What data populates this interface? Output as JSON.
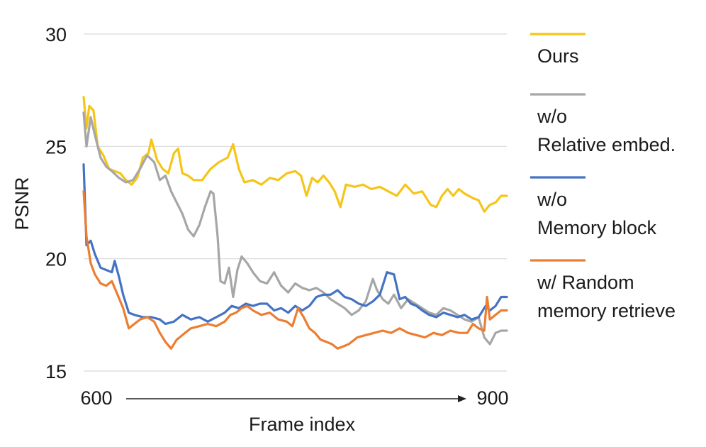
{
  "chart_data": {
    "type": "line",
    "title": "",
    "xlabel": "Frame index",
    "ylabel": "PSNR",
    "xlim": [
      600,
      900
    ],
    "ylim": [
      15,
      30
    ],
    "yticks": [
      15,
      20,
      25,
      30
    ],
    "x_tick_labels": [
      "600",
      "900"
    ],
    "grid": true,
    "legend_position": "right",
    "colors": {
      "ours": "#f5c518",
      "relative": "#a6a6a6",
      "memory": "#4472c4",
      "random": "#ed7d31"
    },
    "series": [
      {
        "name": "Ours",
        "color": "#f5c518",
        "points": [
          [
            600,
            27.2
          ],
          [
            602,
            25.8
          ],
          [
            604,
            26.8
          ],
          [
            607,
            26.6
          ],
          [
            610,
            25.0
          ],
          [
            614,
            24.6
          ],
          [
            618,
            24.0
          ],
          [
            622,
            23.9
          ],
          [
            626,
            23.8
          ],
          [
            630,
            23.5
          ],
          [
            634,
            23.3
          ],
          [
            638,
            23.6
          ],
          [
            642,
            24.5
          ],
          [
            646,
            24.7
          ],
          [
            648,
            25.3
          ],
          [
            652,
            24.4
          ],
          [
            656,
            24.0
          ],
          [
            660,
            23.8
          ],
          [
            664,
            24.7
          ],
          [
            667,
            24.9
          ],
          [
            670,
            23.8
          ],
          [
            674,
            23.7
          ],
          [
            678,
            23.5
          ],
          [
            684,
            23.5
          ],
          [
            690,
            24.0
          ],
          [
            696,
            24.3
          ],
          [
            702,
            24.5
          ],
          [
            706,
            25.1
          ],
          [
            710,
            24.0
          ],
          [
            714,
            23.4
          ],
          [
            720,
            23.5
          ],
          [
            726,
            23.3
          ],
          [
            732,
            23.6
          ],
          [
            738,
            23.5
          ],
          [
            744,
            23.8
          ],
          [
            750,
            23.9
          ],
          [
            754,
            23.7
          ],
          [
            758,
            22.8
          ],
          [
            762,
            23.6
          ],
          [
            766,
            23.4
          ],
          [
            770,
            23.7
          ],
          [
            774,
            23.4
          ],
          [
            778,
            23.0
          ],
          [
            782,
            22.3
          ],
          [
            786,
            23.3
          ],
          [
            792,
            23.2
          ],
          [
            798,
            23.3
          ],
          [
            804,
            23.1
          ],
          [
            810,
            23.2
          ],
          [
            816,
            23.0
          ],
          [
            822,
            22.8
          ],
          [
            828,
            23.3
          ],
          [
            834,
            22.9
          ],
          [
            840,
            23.0
          ],
          [
            846,
            22.4
          ],
          [
            850,
            22.3
          ],
          [
            854,
            22.8
          ],
          [
            858,
            23.1
          ],
          [
            862,
            22.8
          ],
          [
            866,
            23.1
          ],
          [
            870,
            22.9
          ],
          [
            876,
            22.7
          ],
          [
            880,
            22.6
          ],
          [
            884,
            22.1
          ],
          [
            888,
            22.4
          ],
          [
            892,
            22.5
          ],
          [
            896,
            22.8
          ],
          [
            900,
            22.8
          ]
        ]
      },
      {
        "name": "w/o Relative embed.",
        "color": "#a6a6a6",
        "points": [
          [
            600,
            26.5
          ],
          [
            602,
            25.0
          ],
          [
            605,
            26.3
          ],
          [
            608,
            25.5
          ],
          [
            612,
            24.5
          ],
          [
            616,
            24.1
          ],
          [
            620,
            23.9
          ],
          [
            625,
            23.6
          ],
          [
            630,
            23.4
          ],
          [
            635,
            23.5
          ],
          [
            640,
            24.0
          ],
          [
            645,
            24.6
          ],
          [
            650,
            24.3
          ],
          [
            654,
            23.5
          ],
          [
            658,
            23.7
          ],
          [
            662,
            23.0
          ],
          [
            666,
            22.5
          ],
          [
            670,
            22.0
          ],
          [
            674,
            21.3
          ],
          [
            678,
            21.0
          ],
          [
            682,
            21.5
          ],
          [
            686,
            22.3
          ],
          [
            690,
            23.0
          ],
          [
            692,
            22.9
          ],
          [
            695,
            21.0
          ],
          [
            697,
            19.0
          ],
          [
            700,
            18.9
          ],
          [
            703,
            19.6
          ],
          [
            706,
            18.3
          ],
          [
            709,
            19.5
          ],
          [
            712,
            20.1
          ],
          [
            716,
            19.8
          ],
          [
            720,
            19.4
          ],
          [
            725,
            19.0
          ],
          [
            730,
            18.9
          ],
          [
            735,
            19.4
          ],
          [
            740,
            18.8
          ],
          [
            745,
            18.5
          ],
          [
            750,
            18.9
          ],
          [
            755,
            18.7
          ],
          [
            760,
            18.6
          ],
          [
            765,
            18.7
          ],
          [
            770,
            18.5
          ],
          [
            775,
            18.2
          ],
          [
            780,
            18.0
          ],
          [
            785,
            17.8
          ],
          [
            790,
            17.5
          ],
          [
            795,
            17.7
          ],
          [
            800,
            18.1
          ],
          [
            805,
            19.1
          ],
          [
            808,
            18.6
          ],
          [
            812,
            18.2
          ],
          [
            816,
            18.0
          ],
          [
            820,
            18.4
          ],
          [
            825,
            17.8
          ],
          [
            830,
            18.2
          ],
          [
            835,
            18.0
          ],
          [
            840,
            17.8
          ],
          [
            845,
            17.6
          ],
          [
            850,
            17.5
          ],
          [
            855,
            17.8
          ],
          [
            860,
            17.7
          ],
          [
            865,
            17.5
          ],
          [
            870,
            17.3
          ],
          [
            875,
            17.2
          ],
          [
            880,
            17.4
          ],
          [
            884,
            16.5
          ],
          [
            888,
            16.2
          ],
          [
            892,
            16.7
          ],
          [
            896,
            16.8
          ],
          [
            900,
            16.8
          ]
        ]
      },
      {
        "name": "w/o Memory block",
        "color": "#4472c4",
        "points": [
          [
            600,
            24.2
          ],
          [
            602,
            20.6
          ],
          [
            605,
            20.8
          ],
          [
            608,
            20.2
          ],
          [
            612,
            19.6
          ],
          [
            616,
            19.5
          ],
          [
            620,
            19.4
          ],
          [
            622,
            19.9
          ],
          [
            625,
            19.2
          ],
          [
            628,
            18.4
          ],
          [
            632,
            17.6
          ],
          [
            636,
            17.5
          ],
          [
            642,
            17.4
          ],
          [
            648,
            17.4
          ],
          [
            654,
            17.3
          ],
          [
            658,
            17.1
          ],
          [
            664,
            17.2
          ],
          [
            670,
            17.5
          ],
          [
            676,
            17.3
          ],
          [
            682,
            17.4
          ],
          [
            688,
            17.2
          ],
          [
            694,
            17.4
          ],
          [
            700,
            17.6
          ],
          [
            705,
            17.9
          ],
          [
            710,
            17.8
          ],
          [
            715,
            18.0
          ],
          [
            720,
            17.9
          ],
          [
            725,
            18.0
          ],
          [
            730,
            18.0
          ],
          [
            735,
            17.7
          ],
          [
            740,
            17.8
          ],
          [
            745,
            17.6
          ],
          [
            750,
            17.9
          ],
          [
            755,
            17.7
          ],
          [
            760,
            17.9
          ],
          [
            765,
            18.3
          ],
          [
            770,
            18.4
          ],
          [
            775,
            18.4
          ],
          [
            780,
            18.6
          ],
          [
            785,
            18.3
          ],
          [
            790,
            18.2
          ],
          [
            795,
            18.0
          ],
          [
            800,
            17.9
          ],
          [
            805,
            18.1
          ],
          [
            810,
            18.4
          ],
          [
            815,
            19.4
          ],
          [
            820,
            19.3
          ],
          [
            824,
            18.2
          ],
          [
            828,
            18.3
          ],
          [
            832,
            18.0
          ],
          [
            836,
            17.9
          ],
          [
            840,
            17.7
          ],
          [
            845,
            17.5
          ],
          [
            850,
            17.4
          ],
          [
            855,
            17.6
          ],
          [
            860,
            17.5
          ],
          [
            865,
            17.4
          ],
          [
            870,
            17.5
          ],
          [
            875,
            17.3
          ],
          [
            880,
            17.4
          ],
          [
            885,
            17.9
          ],
          [
            888,
            17.7
          ],
          [
            892,
            17.9
          ],
          [
            896,
            18.3
          ],
          [
            900,
            18.3
          ]
        ]
      },
      {
        "name": "w/ Random memory retrieve",
        "color": "#ed7d31",
        "points": [
          [
            600,
            23.0
          ],
          [
            602,
            21.0
          ],
          [
            605,
            19.8
          ],
          [
            608,
            19.3
          ],
          [
            612,
            18.9
          ],
          [
            616,
            18.8
          ],
          [
            620,
            19.0
          ],
          [
            624,
            18.4
          ],
          [
            628,
            17.8
          ],
          [
            632,
            16.9
          ],
          [
            636,
            17.1
          ],
          [
            640,
            17.3
          ],
          [
            645,
            17.4
          ],
          [
            650,
            17.2
          ],
          [
            654,
            16.7
          ],
          [
            658,
            16.3
          ],
          [
            662,
            16.0
          ],
          [
            666,
            16.4
          ],
          [
            670,
            16.6
          ],
          [
            676,
            16.9
          ],
          [
            682,
            17.0
          ],
          [
            688,
            17.1
          ],
          [
            694,
            17.0
          ],
          [
            700,
            17.2
          ],
          [
            704,
            17.5
          ],
          [
            708,
            17.6
          ],
          [
            712,
            17.8
          ],
          [
            716,
            17.9
          ],
          [
            720,
            17.7
          ],
          [
            726,
            17.5
          ],
          [
            732,
            17.6
          ],
          [
            738,
            17.3
          ],
          [
            744,
            17.2
          ],
          [
            748,
            17.0
          ],
          [
            752,
            17.8
          ],
          [
            756,
            17.4
          ],
          [
            760,
            16.9
          ],
          [
            764,
            16.7
          ],
          [
            768,
            16.4
          ],
          [
            772,
            16.3
          ],
          [
            776,
            16.2
          ],
          [
            780,
            16.0
          ],
          [
            784,
            16.1
          ],
          [
            788,
            16.2
          ],
          [
            794,
            16.5
          ],
          [
            800,
            16.6
          ],
          [
            806,
            16.7
          ],
          [
            812,
            16.8
          ],
          [
            818,
            16.7
          ],
          [
            824,
            16.9
          ],
          [
            830,
            16.7
          ],
          [
            836,
            16.6
          ],
          [
            842,
            16.5
          ],
          [
            848,
            16.7
          ],
          [
            854,
            16.6
          ],
          [
            860,
            16.8
          ],
          [
            866,
            16.7
          ],
          [
            872,
            16.7
          ],
          [
            876,
            17.1
          ],
          [
            880,
            16.9
          ],
          [
            884,
            16.8
          ],
          [
            886,
            18.3
          ],
          [
            888,
            17.3
          ],
          [
            892,
            17.5
          ],
          [
            896,
            17.7
          ],
          [
            900,
            17.7
          ]
        ]
      }
    ],
    "legend": [
      {
        "key": "ours",
        "lines": [
          "Ours"
        ]
      },
      {
        "key": "relative",
        "lines": [
          "w/o",
          "Relative embed."
        ]
      },
      {
        "key": "memory",
        "lines": [
          "w/o",
          "Memory block"
        ]
      },
      {
        "key": "random",
        "lines": [
          "w/ Random",
          "memory retrieve"
        ]
      }
    ]
  }
}
